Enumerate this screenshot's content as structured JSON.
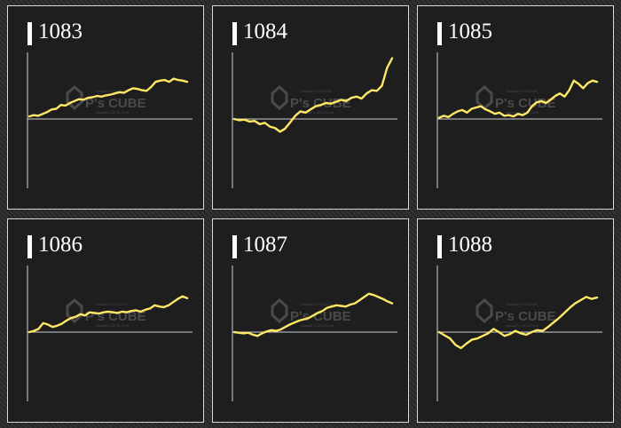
{
  "line_color": "#ffe866",
  "axis_color": "#d0d0d0",
  "watermark_color": "#4a4a4a",
  "panel_border_color": "#d8d8d8",
  "watermark": {
    "brand": "P's CUBE",
    "line1": "Sachiko 8 Oct 2018",
    "line2": "nakau2 1.25 14:10 B"
  },
  "panels": [
    {
      "title": "1083"
    },
    {
      "title": "1084"
    },
    {
      "title": "1085"
    },
    {
      "title": "1086"
    },
    {
      "title": "1087"
    },
    {
      "title": "1088"
    }
  ],
  "chart_data": [
    {
      "type": "line",
      "title": "1083",
      "ylim": [
        -100,
        100
      ],
      "grid": false,
      "series": [
        {
          "values": [
            4,
            6,
            5,
            8,
            11,
            15,
            16,
            22,
            21,
            25,
            28,
            31,
            30,
            33,
            34,
            36,
            35,
            37,
            38,
            40,
            42,
            41,
            45,
            48,
            47,
            45,
            44,
            50,
            58,
            60,
            61,
            58,
            63,
            61,
            60,
            58
          ]
        }
      ]
    },
    {
      "type": "line",
      "title": "1084",
      "ylim": [
        -100,
        100
      ],
      "grid": false,
      "series": [
        {
          "values": [
            0,
            -2,
            -1,
            -4,
            -3,
            -8,
            -6,
            -12,
            -14,
            -20,
            -15,
            -5,
            5,
            12,
            10,
            15,
            20,
            22,
            25,
            24,
            27,
            30,
            28,
            33,
            35,
            32,
            40,
            45,
            44,
            52,
            80,
            95
          ]
        }
      ]
    },
    {
      "type": "line",
      "title": "1085",
      "ylim": [
        -100,
        100
      ],
      "grid": false,
      "series": [
        {
          "values": [
            2,
            5,
            3,
            8,
            12,
            14,
            10,
            16,
            18,
            20,
            15,
            12,
            8,
            10,
            5,
            6,
            4,
            8,
            6,
            10,
            20,
            26,
            28,
            25,
            30,
            36,
            40,
            35,
            45,
            60,
            55,
            48,
            56,
            60,
            58
          ]
        }
      ]
    },
    {
      "type": "line",
      "title": "1086",
      "ylim": [
        -100,
        100
      ],
      "grid": false,
      "series": [
        {
          "values": [
            0,
            2,
            5,
            14,
            12,
            8,
            10,
            13,
            18,
            22,
            24,
            28,
            26,
            31,
            30,
            29,
            31,
            32,
            31,
            30,
            32,
            31,
            33,
            34,
            32,
            35,
            37,
            42,
            40,
            39,
            42,
            47,
            52,
            56,
            53
          ]
        }
      ]
    },
    {
      "type": "line",
      "title": "1087",
      "ylim": [
        -100,
        100
      ],
      "grid": false,
      "series": [
        {
          "values": [
            0,
            -1,
            -2,
            -1,
            -4,
            -6,
            -2,
            1,
            3,
            2,
            4,
            8,
            12,
            15,
            18,
            20,
            22,
            26,
            30,
            33,
            38,
            40,
            42,
            41,
            40,
            43,
            45,
            50,
            55,
            60,
            58,
            55,
            52,
            48,
            45
          ]
        }
      ]
    },
    {
      "type": "line",
      "title": "1088",
      "ylim": [
        -100,
        100
      ],
      "grid": false,
      "series": [
        {
          "values": [
            0,
            -5,
            -10,
            -20,
            -25,
            -18,
            -12,
            -10,
            -6,
            -2,
            5,
            0,
            -6,
            -3,
            2,
            -2,
            -4,
            0,
            3,
            2,
            8,
            15,
            22,
            30,
            38,
            45,
            50,
            55,
            52,
            54
          ]
        }
      ]
    }
  ]
}
